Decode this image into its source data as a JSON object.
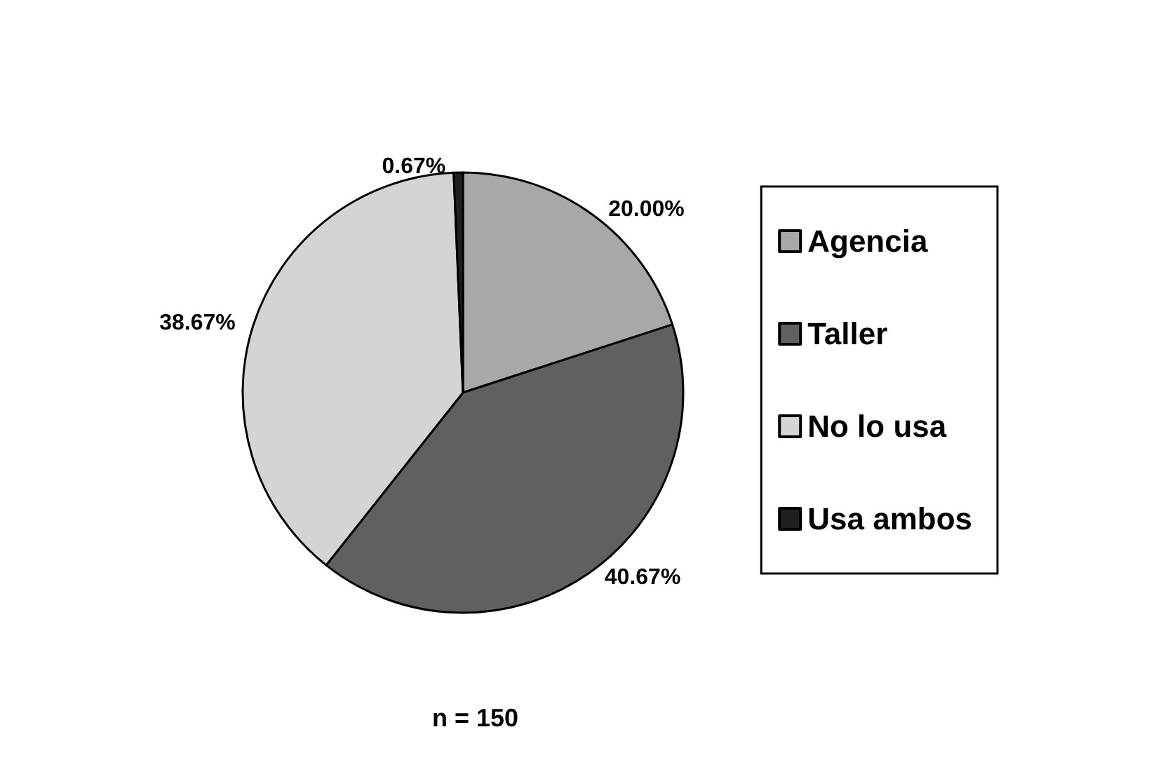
{
  "chart_data": {
    "type": "pie",
    "categories": [
      "Agencia",
      "Taller",
      "No lo usa",
      "Usa ambos"
    ],
    "values": [
      20.0,
      40.67,
      38.67,
      0.67
    ],
    "colors": [
      "#a8a8a8",
      "#606060",
      "#d4d4d4",
      "#202020"
    ],
    "value_labels": [
      "20.00%",
      "40.67%",
      "38.67%",
      "0.67%"
    ],
    "legend": "right",
    "annotations": [
      "n = 150"
    ]
  }
}
